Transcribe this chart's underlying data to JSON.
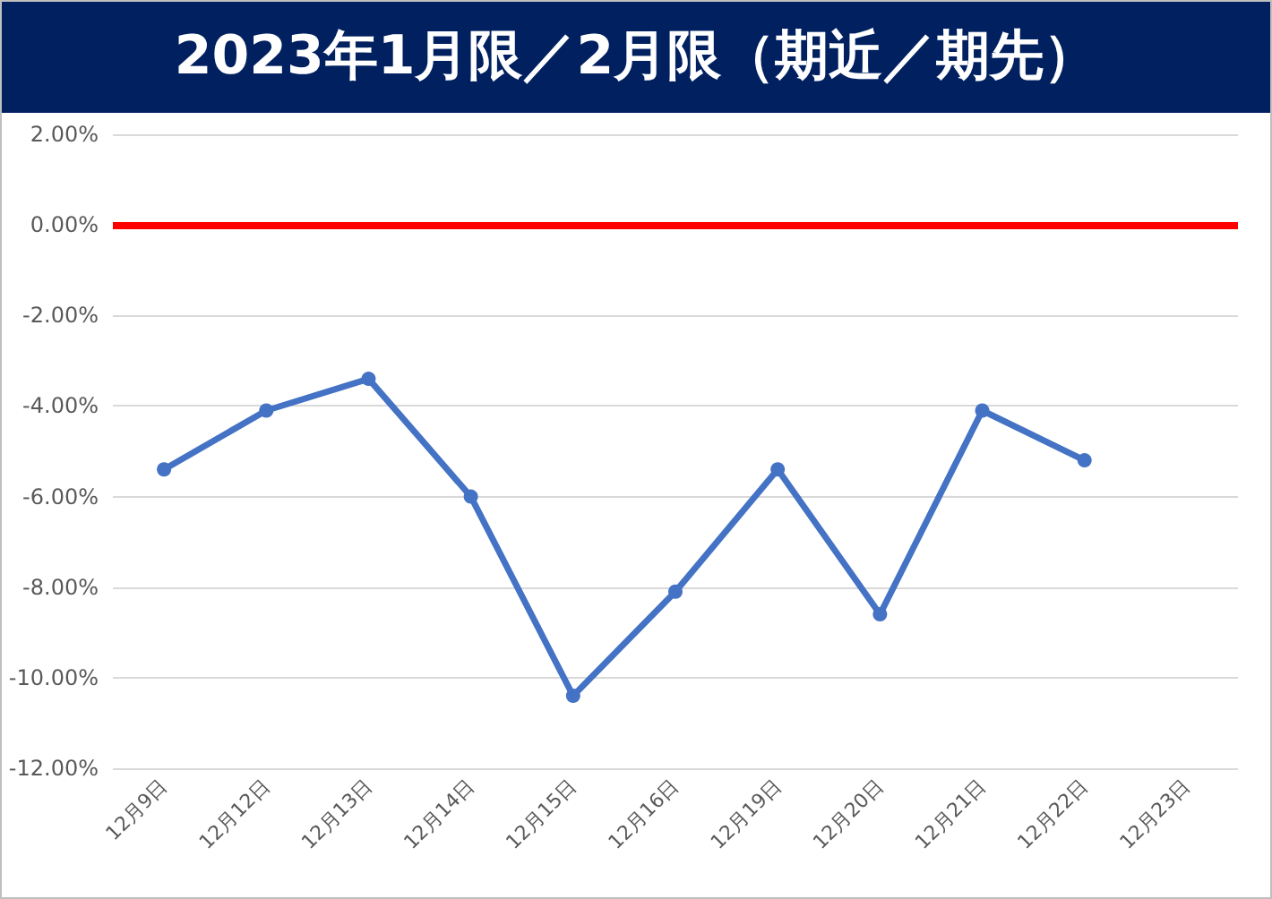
{
  "chart_data": {
    "type": "line",
    "title": "2023年1月限／2月限（期近／期先）",
    "categories": [
      "12月9日",
      "12月12日",
      "12月13日",
      "12月14日",
      "12月15日",
      "12月16日",
      "12月19日",
      "12月20日",
      "12月21日",
      "12月22日",
      "12月23日"
    ],
    "series": [
      {
        "color": "#4472c4",
        "values": [
          -5.4,
          -4.1,
          -3.4,
          -6.0,
          -10.4,
          -8.1,
          -5.4,
          -8.6,
          -4.1,
          -5.2,
          null
        ]
      }
    ],
    "ylim": [
      -12,
      2
    ],
    "yticks": [
      {
        "value": -12,
        "label": "-12.00%"
      },
      {
        "value": -10,
        "label": "-10.00%"
      },
      {
        "value": -8,
        "label": "-8.00%"
      },
      {
        "value": -6,
        "label": "-6.00%"
      },
      {
        "value": -4,
        "label": "-4.00%"
      },
      {
        "value": -2,
        "label": "-2.00%"
      },
      {
        "value": 0,
        "label": "0.00%"
      },
      {
        "value": 2,
        "label": "2.00%"
      }
    ],
    "ref_lines": [
      {
        "axis": "y",
        "value": 0,
        "color": "#ff0000"
      }
    ],
    "grid": "y",
    "marker": "circle",
    "line_style": "solid"
  }
}
